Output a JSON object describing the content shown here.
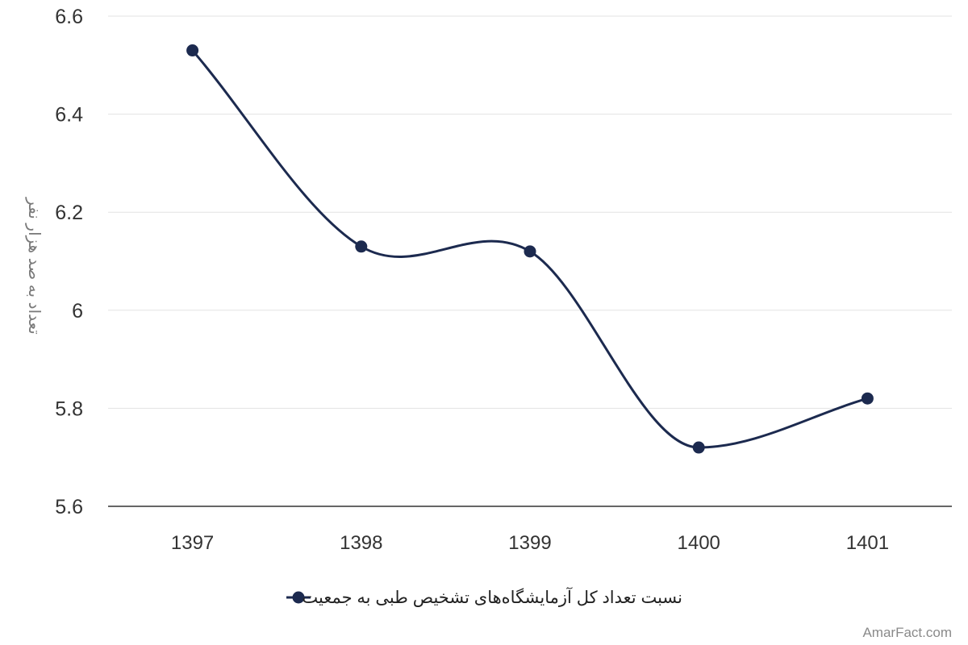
{
  "chart_data": {
    "type": "line",
    "categories": [
      "1397",
      "1398",
      "1399",
      "1400",
      "1401"
    ],
    "series": [
      {
        "name": "نسبت تعداد کل آزمایشگاه‌های تشخیص طبی به جمعیت",
        "values": [
          6.53,
          6.13,
          6.12,
          5.72,
          5.82
        ],
        "color": "#1c2a4f"
      }
    ],
    "ylabel": "تعداد به صد هزار نفر",
    "xlabel": "",
    "ylim": [
      5.6,
      6.6
    ],
    "yticks": [
      "5.6",
      "5.8",
      "6",
      "6.2",
      "6.4",
      "6.6"
    ],
    "grid": true,
    "legend": "bottom-center",
    "smooth": true
  },
  "credit": "AmarFact.com"
}
